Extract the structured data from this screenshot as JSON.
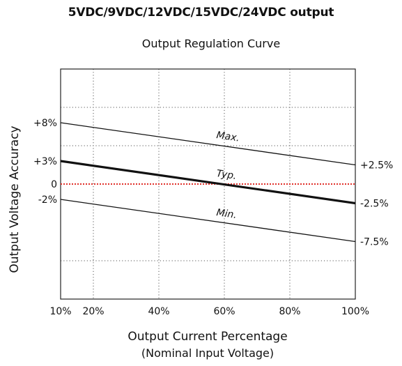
{
  "heading": "5VDC/9VDC/12VDC/15VDC/24VDC output",
  "chart_data": {
    "type": "line",
    "title": "Output Regulation Curve",
    "xlabel": "Output Current Percentage",
    "xlabel_sub": "(Nominal Input Voltage)",
    "ylabel": "Output Voltage Accuracy",
    "xlim": [
      10,
      100
    ],
    "ylim": [
      -15,
      15
    ],
    "x_ticks": [
      10,
      20,
      40,
      60,
      80,
      100
    ],
    "x_tick_labels": [
      "10%",
      "20%",
      "40%",
      "60%",
      "80%",
      "100%"
    ],
    "y_tick_values": [
      8,
      3,
      0,
      -2
    ],
    "y_tick_labels": [
      "+8%",
      "+3%",
      "0",
      "-2%"
    ],
    "right_labels": [
      {
        "value": 2.5,
        "text": "+2.5%"
      },
      {
        "value": -2.5,
        "text": "-2.5%"
      },
      {
        "value": -7.5,
        "text": "-7.5%"
      }
    ],
    "grid_x": [
      20,
      40,
      60,
      80
    ],
    "grid_y": [
      10,
      5,
      -10
    ],
    "grid": true,
    "series": [
      {
        "name": "Max.",
        "x": [
          10,
          100
        ],
        "y": [
          8,
          2.5
        ],
        "color": "#111111",
        "width": 1.3
      },
      {
        "name": "Typ.",
        "x": [
          10,
          100
        ],
        "y": [
          3,
          -2.5
        ],
        "color": "#111111",
        "width": 3.2
      },
      {
        "name": "Min.",
        "x": [
          10,
          100
        ],
        "y": [
          -2,
          -7.5
        ],
        "color": "#111111",
        "width": 1.3
      }
    ],
    "reference_line": {
      "y": 0,
      "color": "#e0302a"
    }
  }
}
